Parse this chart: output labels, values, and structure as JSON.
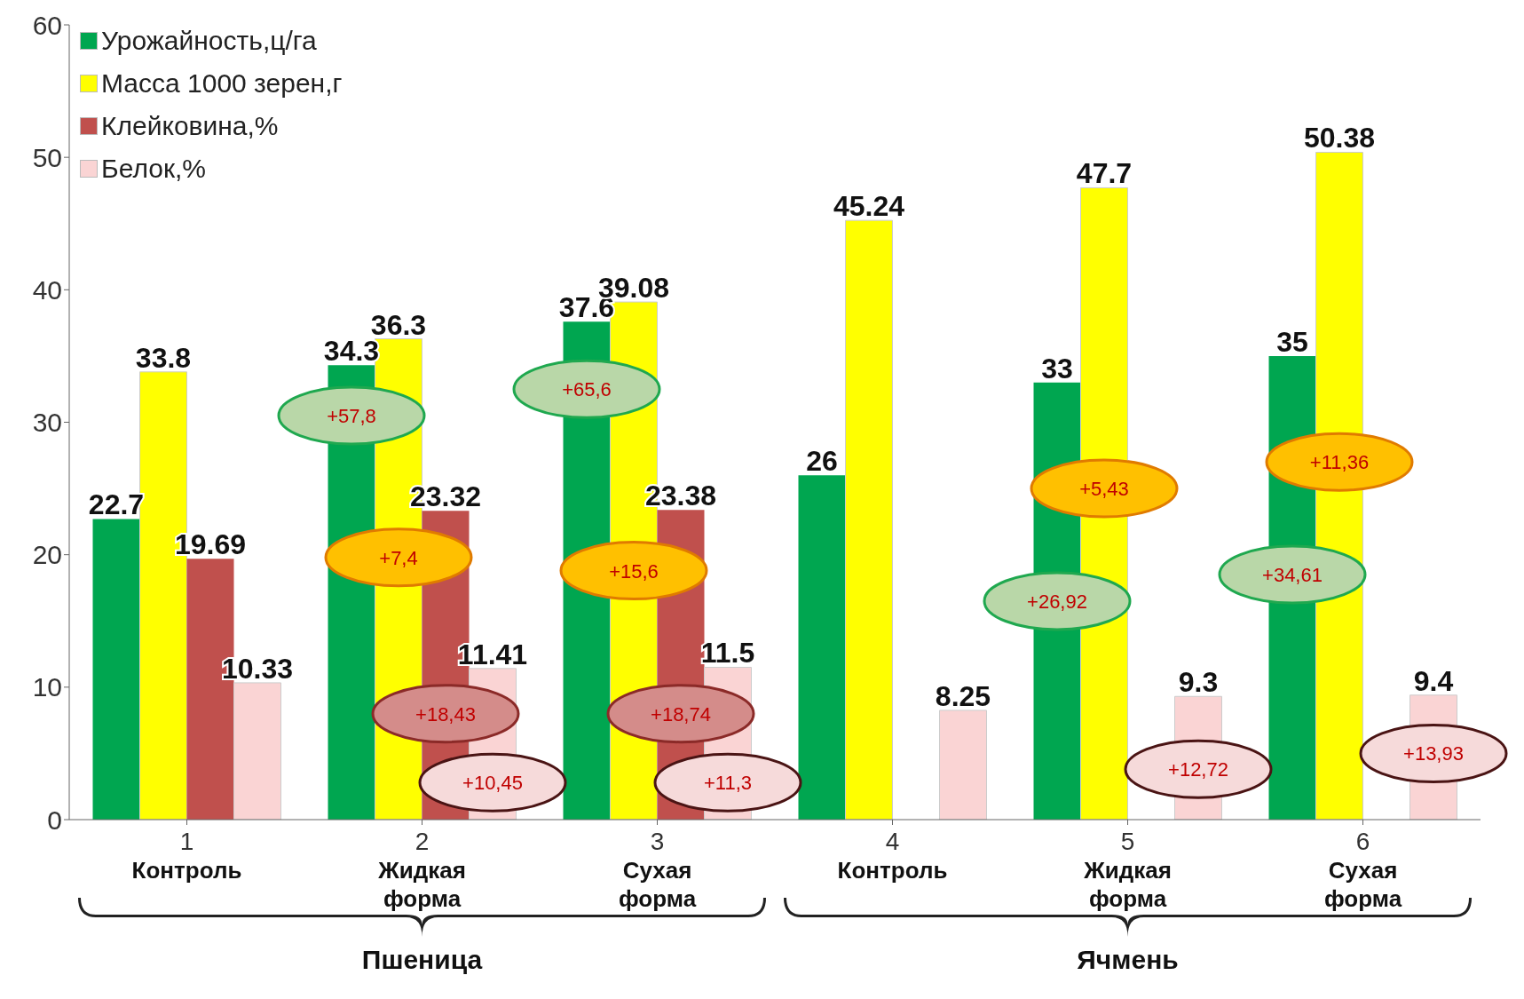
{
  "chart_data": {
    "type": "bar",
    "categories": [
      "1",
      "2",
      "3",
      "4",
      "5",
      "6"
    ],
    "series": [
      {
        "name": "Урожайность,ц/га",
        "color": "#00a650",
        "values": [
          22.7,
          34.3,
          37.6,
          26,
          33,
          35
        ]
      },
      {
        "name": "Масса 1000 зерен,г",
        "color": "#ffff00",
        "values": [
          33.8,
          36.3,
          39.08,
          45.24,
          47.7,
          50.38
        ]
      },
      {
        "name": "Клейковина,%",
        "color": "#c0504d",
        "values": [
          19.69,
          23.32,
          23.38,
          null,
          null,
          null
        ]
      },
      {
        "name": "Белок,%",
        "color": "#fad4d4",
        "values": [
          10.33,
          11.41,
          11.5,
          8.25,
          9.3,
          9.4
        ]
      }
    ],
    "ylim": [
      0,
      60
    ],
    "yticks": [
      0,
      10,
      20,
      30,
      40,
      50,
      60
    ],
    "grid": false,
    "legend": "top left",
    "data_labels": true,
    "annotations": [
      "Пшеница",
      "Ячмень",
      "Контроль",
      "Жидкая форма",
      "Сухая форма",
      "Контроль",
      "Жидкая форма",
      "Сухая форма",
      {
        "text": "+57,8",
        "x": "2",
        "y": 30.5
      },
      {
        "text": "+7,4",
        "x": "2",
        "y": 19.8
      },
      {
        "text": "+18,43",
        "x": "2",
        "y": 8
      },
      {
        "text": "+10,45",
        "x": "2",
        "y": 2.8
      },
      {
        "text": "+65,6",
        "x": "3",
        "y": 32.5
      },
      {
        "text": "+15,6",
        "x": "3",
        "y": 18.8
      },
      {
        "text": "+18,74",
        "x": "3",
        "y": 8
      },
      {
        "text": "+11,3",
        "x": "3",
        "y": 2.8
      },
      {
        "text": "+5,43",
        "x": "5",
        "y": 25
      },
      {
        "text": "+26,92",
        "x": "5",
        "y": 16.5
      },
      {
        "text": "+12,72",
        "x": "5",
        "y": 3.8
      },
      {
        "text": "+11,36",
        "x": "6",
        "y": 27
      },
      {
        "text": "+34,61",
        "x": "6",
        "y": 18.5
      },
      {
        "text": "+13,93",
        "x": "6",
        "y": 5
      }
    ]
  }
}
